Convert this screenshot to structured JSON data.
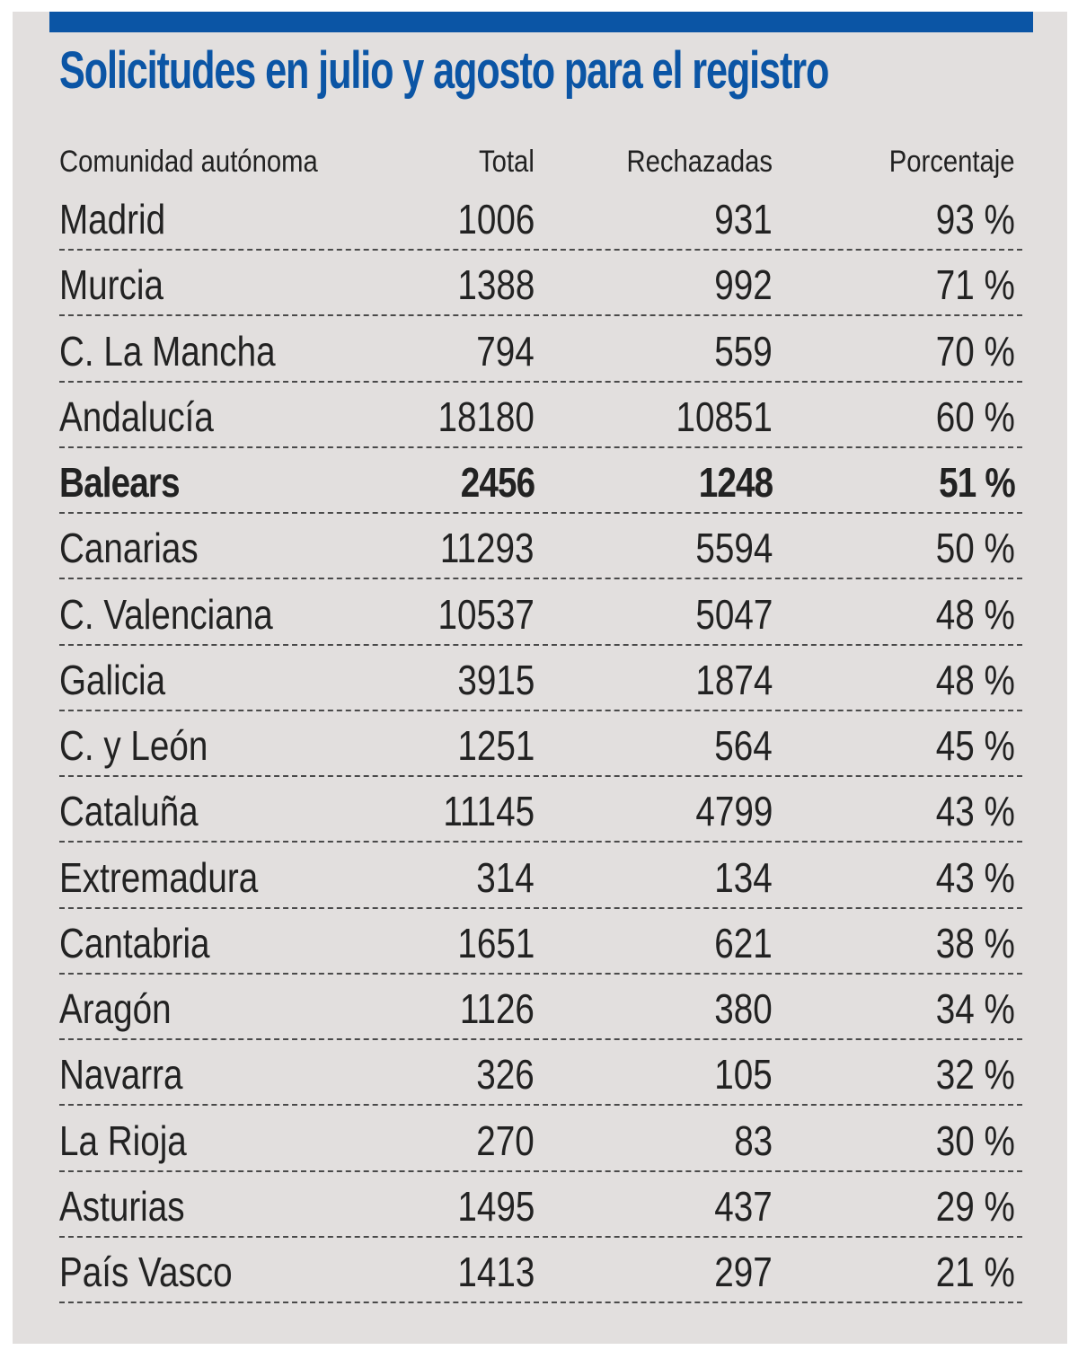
{
  "title": "Solicitudes en julio y agosto para el registro",
  "colors": {
    "accent_blue": "#0b55a5",
    "panel_background": "#e2dfde",
    "text": "#222222",
    "divider": "#4a4a4a"
  },
  "table": {
    "headers": [
      "Comunidad autónoma",
      "Total",
      "Rechazadas",
      "Porcentaje"
    ],
    "rows": [
      {
        "region": "Madrid",
        "total": "1006",
        "rechazadas": "931",
        "porcentaje": "93 %",
        "highlight": false
      },
      {
        "region": "Murcia",
        "total": "1388",
        "rechazadas": "992",
        "porcentaje": "71 %",
        "highlight": false
      },
      {
        "region": "C. La Mancha",
        "total": "794",
        "rechazadas": "559",
        "porcentaje": "70 %",
        "highlight": false
      },
      {
        "region": "Andalucía",
        "total": "18180",
        "rechazadas": "10851",
        "porcentaje": "60 %",
        "highlight": false
      },
      {
        "region": "Balears",
        "total": "2456",
        "rechazadas": "1248",
        "porcentaje": "51 %",
        "highlight": true
      },
      {
        "region": "Canarias",
        "total": "11293",
        "rechazadas": "5594",
        "porcentaje": "50 %",
        "highlight": false
      },
      {
        "region": "C. Valenciana",
        "total": "10537",
        "rechazadas": "5047",
        "porcentaje": "48 %",
        "highlight": false
      },
      {
        "region": "Galicia",
        "total": "3915",
        "rechazadas": "1874",
        "porcentaje": "48 %",
        "highlight": false
      },
      {
        "region": "C. y León",
        "total": "1251",
        "rechazadas": "564",
        "porcentaje": "45 %",
        "highlight": false
      },
      {
        "region": "Cataluña",
        "total": "11145",
        "rechazadas": "4799",
        "porcentaje": "43 %",
        "highlight": false
      },
      {
        "region": "Extremadura",
        "total": "314",
        "rechazadas": "134",
        "porcentaje": "43 %",
        "highlight": false
      },
      {
        "region": "Cantabria",
        "total": "1651",
        "rechazadas": "621",
        "porcentaje": "38 %",
        "highlight": false
      },
      {
        "region": "Aragón",
        "total": "1126",
        "rechazadas": "380",
        "porcentaje": "34 %",
        "highlight": false
      },
      {
        "region": "Navarra",
        "total": "326",
        "rechazadas": "105",
        "porcentaje": "32 %",
        "highlight": false
      },
      {
        "region": "La Rioja",
        "total": "270",
        "rechazadas": "83",
        "porcentaje": "30 %",
        "highlight": false
      },
      {
        "region": "Asturias",
        "total": "1495",
        "rechazadas": "437",
        "porcentaje": "29 %",
        "highlight": false
      },
      {
        "region": "País Vasco",
        "total": "1413",
        "rechazadas": "297",
        "porcentaje": "21 %",
        "highlight": false
      }
    ]
  },
  "chart_data": {
    "type": "table",
    "title": "Solicitudes en julio y agosto para el registro",
    "columns": [
      "Comunidad autónoma",
      "Total",
      "Rechazadas",
      "Porcentaje"
    ],
    "categories": [
      "Madrid",
      "Murcia",
      "C. La Mancha",
      "Andalucía",
      "Balears",
      "Canarias",
      "C. Valenciana",
      "Galicia",
      "C. y León",
      "Cataluña",
      "Extremadura",
      "Cantabria",
      "Aragón",
      "Navarra",
      "La Rioja",
      "Asturias",
      "País Vasco"
    ],
    "series": [
      {
        "name": "Total",
        "values": [
          1006,
          1388,
          794,
          18180,
          2456,
          11293,
          10537,
          3915,
          1251,
          11145,
          314,
          1651,
          1126,
          326,
          270,
          1495,
          1413
        ]
      },
      {
        "name": "Rechazadas",
        "values": [
          931,
          992,
          559,
          10851,
          1248,
          5594,
          5047,
          1874,
          564,
          4799,
          134,
          621,
          380,
          105,
          83,
          437,
          297
        ]
      },
      {
        "name": "Porcentaje",
        "unit": "%",
        "values": [
          93,
          71,
          70,
          60,
          51,
          50,
          48,
          48,
          45,
          43,
          43,
          38,
          34,
          32,
          30,
          29,
          21
        ]
      }
    ],
    "highlighted_row": "Balears",
    "sort": "Porcentaje descending"
  }
}
